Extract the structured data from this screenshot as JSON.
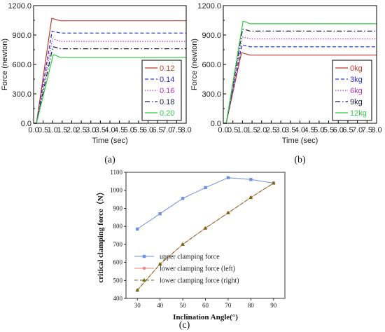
{
  "chart_data": [
    {
      "type": "line",
      "panel_label": "(a)",
      "xlabel": "Time (sec)",
      "ylabel": "Force (newton)",
      "xlim": [
        0,
        8
      ],
      "ylim": [
        0,
        1200
      ],
      "xticks": [
        "0.0",
        "0.5",
        "1.0",
        "1.5",
        "2.0",
        "2.5",
        "3.0",
        "3.5",
        "4.0",
        "4.5",
        "5.0",
        "5.5",
        "6.0",
        "6.5",
        "7.0",
        "7.5",
        "8.0"
      ],
      "yticks": [
        "0.0",
        "300.0",
        "600.0",
        "900.0",
        "1200.0"
      ],
      "legend_position": "bottom-right",
      "series": [
        {
          "name": "0.12",
          "color": "#c0392b",
          "dash": "solid",
          "peak": 1070,
          "steady": 1045
        },
        {
          "name": "0.14",
          "color": "#2b2bd0",
          "dash": "dashed",
          "peak": 940,
          "steady": 920
        },
        {
          "name": "0.16",
          "color": "#b030b0",
          "dash": "dotted",
          "peak": 860,
          "steady": 835
        },
        {
          "name": "0.18",
          "color": "#1a1a4a",
          "dash": "dashdot",
          "peak": 780,
          "steady": 760
        },
        {
          "name": "0.20",
          "color": "#2ecc40",
          "dash": "solid",
          "peak": 700,
          "steady": 670
        }
      ]
    },
    {
      "type": "line",
      "panel_label": "(b)",
      "xlabel": "Time (sec)",
      "ylabel": "Force (newton)",
      "xlim": [
        0,
        8
      ],
      "ylim": [
        0,
        1200
      ],
      "xticks": [
        "0.0",
        "0.5",
        "1.0",
        "1.5",
        "2.0",
        "2.5",
        "3.0",
        "3.5",
        "4.0",
        "4.5",
        "5.0",
        "5.5",
        "6.0",
        "6.5",
        "7.0",
        "7.5",
        "8.0"
      ],
      "yticks": [
        "0.0",
        "300.0",
        "600.0",
        "900.0",
        "1200.0"
      ],
      "legend_position": "bottom-right",
      "series": [
        {
          "name": "0kg",
          "color": "#c0392b",
          "dash": "solid",
          "peak": 720,
          "steady": 695
        },
        {
          "name": "3kg",
          "color": "#2b2bd0",
          "dash": "dashed",
          "peak": 800,
          "steady": 780
        },
        {
          "name": "6kg",
          "color": "#b030b0",
          "dash": "dotted",
          "peak": 880,
          "steady": 860
        },
        {
          "name": "9kg",
          "color": "#1a1a4a",
          "dash": "dashdot",
          "peak": 960,
          "steady": 940
        },
        {
          "name": "12kg",
          "color": "#2ecc40",
          "dash": "solid",
          "peak": 1040,
          "steady": 1015
        }
      ]
    },
    {
      "type": "line",
      "panel_label": "(c)",
      "xlabel": "Inclination Angle(°)",
      "ylabel": "critical clamping force（N）",
      "xlim": [
        25,
        95
      ],
      "ylim": [
        400,
        1100
      ],
      "xticks": [
        "30",
        "40",
        "50",
        "60",
        "70",
        "80",
        "90"
      ],
      "yticks": [
        "400",
        "500",
        "600",
        "700",
        "800",
        "900",
        "1000",
        "1100"
      ],
      "x": [
        30,
        40,
        50,
        60,
        70,
        80,
        90
      ],
      "legend_position": "bottom-left",
      "series": [
        {
          "name": "upper clamping force",
          "color": "#6f8fe0",
          "dash": "solid",
          "marker": "square",
          "values": [
            785,
            870,
            955,
            1015,
            1070,
            1060,
            1040
          ]
        },
        {
          "name": "lower clamping force (left)",
          "color": "#f08080",
          "dash": "solid",
          "marker": "circle",
          "values": [
            445,
            590,
            700,
            790,
            875,
            960,
            1040
          ]
        },
        {
          "name": "lower clamping force (right)",
          "color": "#6b6b10",
          "dash": "dashed",
          "marker": "triangle",
          "values": [
            445,
            590,
            700,
            790,
            875,
            960,
            1040
          ]
        }
      ]
    }
  ]
}
